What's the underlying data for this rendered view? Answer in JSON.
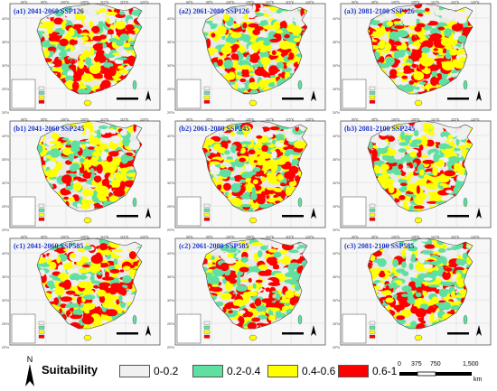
{
  "panels": [
    {
      "title": "(a1) 2041-2060 SSP126",
      "pattern": 0
    },
    {
      "title": "(a2) 2061-2080 SSP126",
      "pattern": 1
    },
    {
      "title": "(a3) 2081-2100 SSP126",
      "pattern": 2
    },
    {
      "title": "(b1) 2041-2060 SSP245",
      "pattern": 1
    },
    {
      "title": "(b2) 2061-2080 SSP245",
      "pattern": 2
    },
    {
      "title": "(b3) 2081-2100 SSP245",
      "pattern": 0
    },
    {
      "title": "(c1) 2041-2060 SSP585",
      "pattern": 2
    },
    {
      "title": "(c2) 2061-2080 SSP585",
      "pattern": 0
    },
    {
      "title": "(c3) 2081-2100 SSP585",
      "pattern": 1
    }
  ],
  "longitude_labels": [
    "90°E",
    "95°E",
    "100°E",
    "105°E",
    "110°E",
    "115°E",
    "120°E",
    "125°E"
  ],
  "latitude_labels": [
    "40°N",
    "35°N",
    "30°N",
    "25°N",
    "20°N"
  ],
  "legend": {
    "title": "Suitability",
    "items": [
      {
        "label": "0-0.2",
        "color": "#f0f0f0"
      },
      {
        "label": "0.2-0.4",
        "color": "#5fe0a0"
      },
      {
        "label": "0.4-0.6",
        "color": "#ffff00"
      },
      {
        "label": "0.6-1",
        "color": "#ff0000"
      }
    ],
    "north_label": "N",
    "scale_ticks": [
      "0",
      "375",
      "750",
      "1,500"
    ],
    "scale_unit": "km"
  },
  "colors": {
    "land": "#e8e8e8",
    "title": "#1a34c9",
    "frame": "#555555"
  }
}
